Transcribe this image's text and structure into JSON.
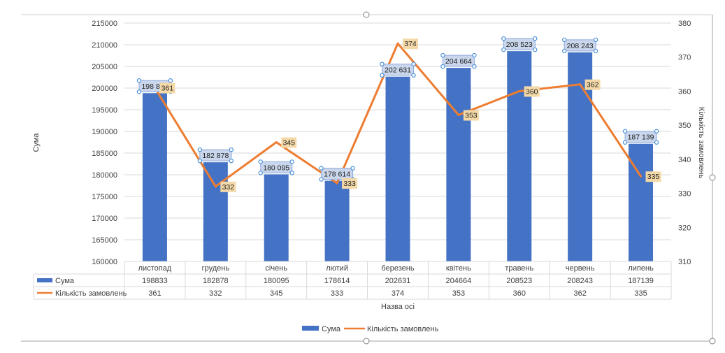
{
  "chart_data": {
    "type": "bar",
    "categories": [
      "листопад",
      "грудень",
      "січень",
      "лютий",
      "березень",
      "квітень",
      "травень",
      "червень",
      "липень"
    ],
    "series": [
      {
        "name": "Сума",
        "kind": "bar",
        "axis": "left",
        "values": [
          198833,
          182878,
          180095,
          178614,
          202631,
          204664,
          208523,
          208243,
          187139
        ],
        "data_labels": [
          "198 833",
          "182 878",
          "180 095",
          "178 614",
          "202 631",
          "204 664",
          "208 523",
          "208 243",
          "187 139"
        ],
        "table_values": [
          "198833",
          "182878",
          "180095",
          "178614",
          "202631",
          "204664",
          "208523",
          "208243",
          "187139"
        ],
        "color": "#4472C4"
      },
      {
        "name": "Кількість замовлень",
        "kind": "line",
        "axis": "right",
        "values": [
          361,
          332,
          345,
          333,
          374,
          353,
          360,
          362,
          335
        ],
        "data_labels": [
          "361",
          "332",
          "345",
          "333",
          "374",
          "353",
          "360",
          "362",
          "335"
        ],
        "table_values": [
          "361",
          "332",
          "345",
          "333",
          "374",
          "353",
          "360",
          "362",
          "335"
        ],
        "color": "#ED7D31"
      }
    ],
    "xlabel": "Назва осі",
    "ylabel": "Сума",
    "y2label": "Кількість замовлень",
    "ylim": [
      160000,
      215000
    ],
    "yticks": [
      "160000",
      "165000",
      "170000",
      "175000",
      "180000",
      "185000",
      "190000",
      "195000",
      "200000",
      "205000",
      "210000",
      "215000"
    ],
    "y2lim": [
      310,
      380
    ],
    "y2ticks": [
      "310",
      "320",
      "330",
      "340",
      "350",
      "360",
      "370",
      "380"
    ],
    "grid": true,
    "legend": "bottom",
    "data_table": true
  },
  "colors": {
    "bar": "#4472C4",
    "line": "#ED7D31",
    "bar_label_fill": "#C9D6EC",
    "line_label_fill": "#F4D9A8",
    "grid": "#D9D9D9",
    "text": "#404040"
  }
}
